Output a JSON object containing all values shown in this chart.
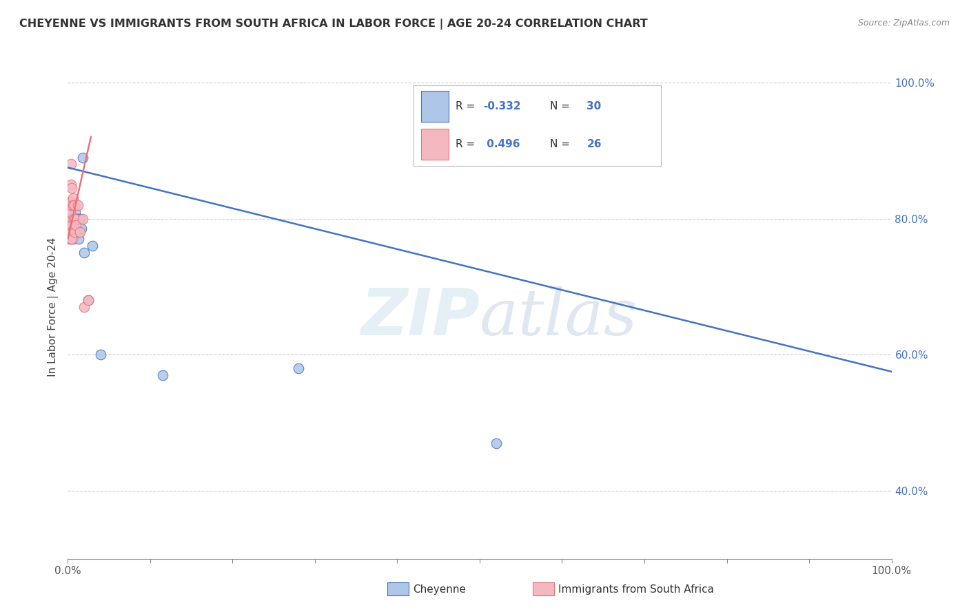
{
  "title": "CHEYENNE VS IMMIGRANTS FROM SOUTH AFRICA IN LABOR FORCE | AGE 20-24 CORRELATION CHART",
  "source": "Source: ZipAtlas.com",
  "ylabel": "In Labor Force | Age 20-24",
  "watermark": "ZIPatlas",
  "blue_line_color": "#4472c4",
  "pink_line_color": "#e8727a",
  "scatter_blue_color": "#aec6e8",
  "scatter_blue_edge": "#4472c4",
  "scatter_pink_color": "#f4b8c1",
  "scatter_pink_edge": "#e8727a",
  "grid_color": "#c8c8c8",
  "background_color": "#ffffff",
  "legend_r_blue": "-0.332",
  "legend_n_blue": "30",
  "legend_r_pink": "0.496",
  "legend_n_pink": "26",
  "cheyenne_x": [
    0.002,
    0.003,
    0.003,
    0.004,
    0.005,
    0.005,
    0.006,
    0.006,
    0.007,
    0.007,
    0.008,
    0.008,
    0.009,
    0.009,
    0.01,
    0.01,
    0.011,
    0.012,
    0.013,
    0.014,
    0.015,
    0.016,
    0.018,
    0.02,
    0.025,
    0.03,
    0.04,
    0.115,
    0.28,
    0.52
  ],
  "cheyenne_y": [
    0.775,
    0.79,
    0.8,
    0.77,
    0.78,
    0.82,
    0.8,
    0.77,
    0.785,
    0.8,
    0.785,
    0.78,
    0.81,
    0.8,
    0.795,
    0.785,
    0.8,
    0.8,
    0.77,
    0.78,
    0.8,
    0.785,
    0.89,
    0.75,
    0.68,
    0.76,
    0.6,
    0.57,
    0.58,
    0.47
  ],
  "sa_x": [
    0.001,
    0.001,
    0.002,
    0.002,
    0.003,
    0.003,
    0.003,
    0.004,
    0.004,
    0.004,
    0.005,
    0.005,
    0.005,
    0.006,
    0.006,
    0.007,
    0.007,
    0.008,
    0.008,
    0.009,
    0.01,
    0.012,
    0.015,
    0.018,
    0.02,
    0.025
  ],
  "sa_y": [
    0.77,
    0.78,
    0.79,
    0.8,
    0.81,
    0.82,
    0.77,
    0.825,
    0.85,
    0.88,
    0.845,
    0.77,
    0.79,
    0.83,
    0.82,
    0.8,
    0.785,
    0.82,
    0.78,
    0.8,
    0.79,
    0.82,
    0.78,
    0.8,
    0.67,
    0.68
  ],
  "xlim": [
    0.0,
    1.0
  ],
  "ylim": [
    0.3,
    1.04
  ],
  "blue_line_x0": 0.0,
  "blue_line_x1": 1.0,
  "blue_line_y0": 0.875,
  "blue_line_y1": 0.575,
  "pink_line_x0": 0.0,
  "pink_line_x1": 0.028,
  "pink_line_y0": 0.77,
  "pink_line_y1": 0.92
}
